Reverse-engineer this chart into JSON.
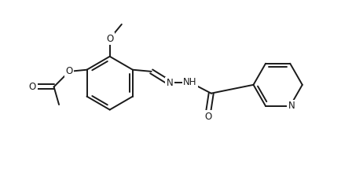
{
  "bg_color": "#ffffff",
  "line_color": "#1a1a1a",
  "line_width": 1.4,
  "font_size": 8.5,
  "figsize": [
    4.35,
    2.2
  ],
  "dpi": 100,
  "xlim": [
    0,
    10
  ],
  "ylim": [
    0,
    5
  ]
}
